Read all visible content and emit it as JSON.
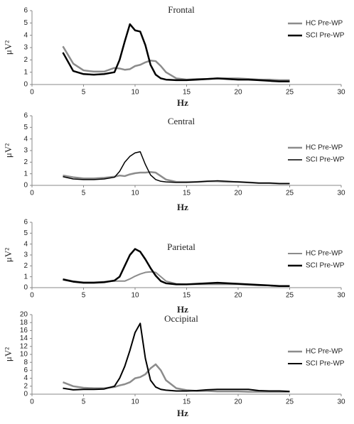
{
  "chart_data": [
    {
      "type": "line",
      "title": "Frontal",
      "xlabel": "Hz",
      "ylabel": "μV²",
      "x": [
        3,
        4,
        5,
        6,
        7,
        8,
        8.5,
        9,
        9.5,
        10,
        10.5,
        11,
        11.5,
        12,
        12.5,
        13,
        14,
        15,
        16,
        17,
        18,
        19,
        20,
        21,
        22,
        23,
        24,
        25
      ],
      "series": [
        {
          "name": "HC Pre-WP",
          "color": "#8c8c8c",
          "values": [
            3.1,
            1.7,
            1.15,
            1.05,
            1.05,
            1.35,
            1.3,
            1.2,
            1.25,
            1.5,
            1.6,
            1.8,
            1.95,
            1.9,
            1.5,
            1.0,
            0.5,
            0.4,
            0.45,
            0.45,
            0.5,
            0.5,
            0.5,
            0.45,
            0.4,
            0.4,
            0.35,
            0.35
          ]
        },
        {
          "name": "SCI Pre-WP",
          "color": "#000000",
          "values": [
            2.6,
            1.1,
            0.85,
            0.8,
            0.85,
            1.0,
            2.0,
            3.5,
            4.9,
            4.4,
            4.3,
            3.2,
            1.6,
            0.8,
            0.5,
            0.4,
            0.35,
            0.35,
            0.4,
            0.45,
            0.5,
            0.45,
            0.4,
            0.4,
            0.35,
            0.3,
            0.25,
            0.25
          ]
        }
      ],
      "xlim": [
        0,
        30
      ],
      "xticks": [
        0,
        5,
        10,
        15,
        20,
        25,
        30
      ],
      "ylim": [
        0,
        6
      ],
      "yticks": [
        0,
        1,
        2,
        3,
        4,
        5,
        6
      ],
      "legend": "upper right",
      "grid": false
    },
    {
      "type": "line",
      "title": "Central",
      "xlabel": "Hz",
      "ylabel": "μV²",
      "x": [
        3,
        4,
        5,
        6,
        7,
        8,
        8.5,
        9,
        9.5,
        10,
        10.5,
        11,
        11.5,
        12,
        12.5,
        13,
        14,
        15,
        16,
        17,
        18,
        19,
        20,
        21,
        22,
        23,
        24,
        25
      ],
      "series": [
        {
          "name": "HC Pre-WP",
          "color": "#8c8c8c",
          "values": [
            0.85,
            0.7,
            0.6,
            0.6,
            0.65,
            0.75,
            0.85,
            0.8,
            0.95,
            1.05,
            1.1,
            1.1,
            1.15,
            1.1,
            0.8,
            0.5,
            0.3,
            0.3,
            0.3,
            0.35,
            0.35,
            0.3,
            0.3,
            0.25,
            0.2,
            0.2,
            0.15,
            0.15
          ]
        },
        {
          "name": "SCI Pre-WP",
          "color": "#000000",
          "values": [
            0.75,
            0.55,
            0.5,
            0.5,
            0.55,
            0.7,
            1.2,
            2.0,
            2.5,
            2.8,
            2.9,
            1.8,
            0.9,
            0.5,
            0.35,
            0.3,
            0.25,
            0.25,
            0.3,
            0.35,
            0.4,
            0.35,
            0.3,
            0.25,
            0.2,
            0.2,
            0.15,
            0.15
          ]
        }
      ],
      "xlim": [
        0,
        30
      ],
      "xticks": [
        0,
        5,
        10,
        15,
        20,
        25,
        30
      ],
      "ylim": [
        0,
        6
      ],
      "yticks": [
        0,
        1,
        2,
        3,
        4,
        5,
        6
      ],
      "legend": "upper right",
      "grid": false
    },
    {
      "type": "line",
      "title": "Parietal",
      "xlabel": "Hz",
      "ylabel": "μV²",
      "x": [
        3,
        4,
        5,
        6,
        7,
        8,
        8.5,
        9,
        9.5,
        10,
        10.5,
        11,
        11.5,
        12,
        12.5,
        13,
        14,
        15,
        16,
        17,
        18,
        19,
        20,
        21,
        22,
        23,
        24,
        25
      ],
      "series": [
        {
          "name": "HC Pre-WP",
          "color": "#8c8c8c",
          "values": [
            0.8,
            0.6,
            0.5,
            0.5,
            0.55,
            0.6,
            0.6,
            0.6,
            0.8,
            1.05,
            1.25,
            1.4,
            1.45,
            1.4,
            1.0,
            0.6,
            0.35,
            0.3,
            0.3,
            0.3,
            0.3,
            0.3,
            0.3,
            0.25,
            0.2,
            0.2,
            0.15,
            0.15
          ]
        },
        {
          "name": "SCI Pre-WP",
          "color": "#000000",
          "values": [
            0.75,
            0.55,
            0.45,
            0.45,
            0.5,
            0.65,
            1.0,
            2.0,
            3.0,
            3.55,
            3.3,
            2.6,
            1.8,
            1.1,
            0.6,
            0.4,
            0.3,
            0.3,
            0.35,
            0.4,
            0.45,
            0.4,
            0.35,
            0.3,
            0.25,
            0.2,
            0.15,
            0.15
          ]
        }
      ],
      "xlim": [
        0,
        30
      ],
      "xticks": [
        0,
        5,
        10,
        15,
        20,
        25,
        30
      ],
      "ylim": [
        0,
        6
      ],
      "yticks": [
        0,
        1,
        2,
        3,
        4,
        5,
        6
      ],
      "legend": "upper right",
      "grid": false
    },
    {
      "type": "line",
      "title": "Occipital",
      "xlabel": "Hz",
      "ylabel": "μV²",
      "x": [
        3,
        4,
        5,
        6,
        7,
        8,
        8.5,
        9,
        9.5,
        10,
        10.5,
        11,
        11.5,
        12,
        12.5,
        13,
        14,
        15,
        16,
        17,
        18,
        19,
        20,
        21,
        22,
        23,
        24,
        25
      ],
      "series": [
        {
          "name": "HC Pre-WP",
          "color": "#8c8c8c",
          "values": [
            3.0,
            2.0,
            1.6,
            1.5,
            1.5,
            1.8,
            2.2,
            2.5,
            3.0,
            4.0,
            4.3,
            5.0,
            6.5,
            7.5,
            6.0,
            3.5,
            1.5,
            1.0,
            0.8,
            0.8,
            0.7,
            0.7,
            0.7,
            0.6,
            0.6,
            0.6,
            0.6,
            0.6
          ]
        },
        {
          "name": "SCI Pre-WP",
          "color": "#000000",
          "values": [
            1.5,
            1.1,
            1.2,
            1.2,
            1.3,
            2.0,
            4.0,
            7.0,
            11.0,
            15.5,
            17.8,
            9.0,
            3.5,
            1.8,
            1.2,
            1.0,
            0.8,
            0.8,
            0.9,
            1.1,
            1.2,
            1.2,
            1.2,
            1.2,
            0.9,
            0.8,
            0.8,
            0.7
          ]
        }
      ],
      "xlim": [
        0,
        30
      ],
      "xticks": [
        0,
        5,
        10,
        15,
        20,
        25,
        30
      ],
      "ylim": [
        0,
        20
      ],
      "yticks": [
        0,
        2,
        4,
        6,
        8,
        10,
        12,
        14,
        16,
        18,
        20
      ],
      "legend": "upper right",
      "grid": false
    }
  ]
}
